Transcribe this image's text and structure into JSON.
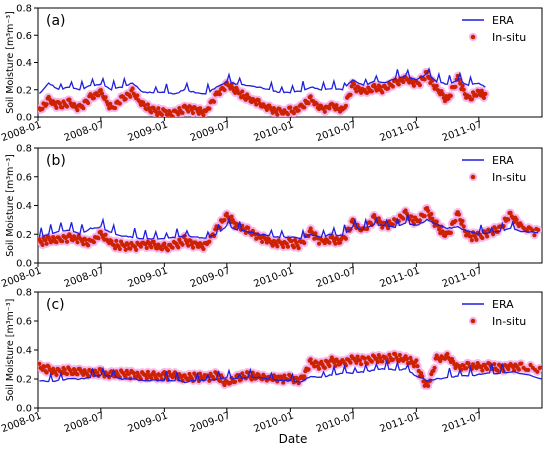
{
  "figure": {
    "xlabel": "Date",
    "ylabel": "Soil Moisture [m³m⁻³]",
    "legend_position": "top-right"
  },
  "colors": {
    "era": "#1f1fdd",
    "insitu_dot": "#cc2200",
    "insitu_halo": "#f5a8e8",
    "axis": "#000000"
  },
  "chart_data": [
    {
      "type": "line",
      "panel_label": "(a)",
      "x_type": "date",
      "xlim": [
        "2008-01-01",
        "2011-12-31"
      ],
      "ylim": [
        0.0,
        0.8
      ],
      "yticks": [
        0.0,
        0.2,
        0.4,
        0.6,
        0.8
      ],
      "ytick_labels": [
        "0.0",
        "0.2",
        "0.4",
        "0.6",
        "0.8"
      ],
      "xticks": [
        "2008-01-01",
        "2008-07-01",
        "2009-01-01",
        "2009-07-01",
        "2010-01-01",
        "2010-07-01",
        "2011-01-01",
        "2011-07-01"
      ],
      "xtick_labels": [
        "2008-01",
        "2008-07",
        "2009-01",
        "2009-07",
        "2010-01",
        "2010-07",
        "2011-01",
        "2011-07"
      ],
      "grid": false,
      "legend": "top-right",
      "series": [
        {
          "name": "ERA",
          "style": "line",
          "x": [
            "2008-01-05",
            "2008-02-01",
            "2008-03-01",
            "2008-04-01",
            "2008-05-01",
            "2008-06-01",
            "2008-07-01",
            "2008-08-01",
            "2008-09-01",
            "2008-10-01",
            "2008-11-01",
            "2008-12-01",
            "2009-01-01",
            "2009-02-01",
            "2009-03-01",
            "2009-04-01",
            "2009-05-01",
            "2009-06-01",
            "2009-07-01",
            "2009-08-01",
            "2009-09-01",
            "2009-10-01",
            "2009-11-01",
            "2009-12-01",
            "2010-01-01",
            "2010-02-01",
            "2010-03-01",
            "2010-04-01",
            "2010-05-01",
            "2010-06-01",
            "2010-07-01",
            "2010-08-01",
            "2010-09-01",
            "2010-10-01",
            "2010-11-01",
            "2010-12-01",
            "2011-01-01",
            "2011-02-01",
            "2011-03-01",
            "2011-04-01",
            "2011-05-01",
            "2011-06-01",
            "2011-07-01",
            "2011-07-20"
          ],
          "y": [
            0.17,
            0.25,
            0.2,
            0.22,
            0.2,
            0.23,
            0.24,
            0.2,
            0.22,
            0.25,
            0.18,
            0.18,
            0.18,
            0.17,
            0.2,
            0.18,
            0.17,
            0.22,
            0.26,
            0.24,
            0.23,
            0.22,
            0.2,
            0.18,
            0.18,
            0.19,
            0.22,
            0.2,
            0.21,
            0.2,
            0.27,
            0.23,
            0.26,
            0.25,
            0.28,
            0.3,
            0.27,
            0.32,
            0.26,
            0.24,
            0.27,
            0.23,
            0.25,
            0.22
          ]
        },
        {
          "name": "In-situ",
          "style": "dots",
          "x": [
            "2008-01-05",
            "2008-02-01",
            "2008-03-01",
            "2008-04-01",
            "2008-05-01",
            "2008-06-01",
            "2008-07-01",
            "2008-08-01",
            "2008-09-01",
            "2008-10-01",
            "2008-11-01",
            "2008-12-01",
            "2009-01-01",
            "2009-02-01",
            "2009-03-01",
            "2009-04-01",
            "2009-05-01",
            "2009-06-01",
            "2009-07-01",
            "2009-08-01",
            "2009-09-01",
            "2009-10-01",
            "2009-11-01",
            "2009-12-01",
            "2010-01-01",
            "2010-02-01",
            "2010-03-01",
            "2010-04-01",
            "2010-05-01",
            "2010-06-01",
            "2010-07-01",
            "2010-08-01",
            "2010-09-01",
            "2010-10-01",
            "2010-11-01",
            "2010-12-01",
            "2011-01-01",
            "2011-02-01",
            "2011-03-01",
            "2011-04-01",
            "2011-05-01",
            "2011-06-01",
            "2011-07-01",
            "2011-07-20"
          ],
          "y": [
            0.06,
            0.14,
            0.1,
            0.12,
            0.08,
            0.16,
            0.2,
            0.08,
            0.15,
            0.2,
            0.1,
            0.06,
            0.05,
            0.04,
            0.08,
            0.07,
            0.05,
            0.18,
            0.26,
            0.2,
            0.15,
            0.12,
            0.08,
            0.05,
            0.06,
            0.08,
            0.15,
            0.07,
            0.1,
            0.06,
            0.25,
            0.2,
            0.23,
            0.22,
            0.27,
            0.3,
            0.25,
            0.33,
            0.22,
            0.14,
            0.3,
            0.15,
            0.2,
            0.17
          ]
        }
      ]
    },
    {
      "type": "line",
      "panel_label": "(b)",
      "x_type": "date",
      "xlim": [
        "2008-01-01",
        "2011-12-31"
      ],
      "ylim": [
        0.0,
        0.8
      ],
      "yticks": [
        0.0,
        0.2,
        0.4,
        0.6,
        0.8
      ],
      "ytick_labels": [
        "0.0",
        "0.2",
        "0.4",
        "0.6",
        "0.8"
      ],
      "xticks": [
        "2008-01-01",
        "2008-07-01",
        "2009-01-01",
        "2009-07-01",
        "2010-01-01",
        "2010-07-01",
        "2011-01-01",
        "2011-07-01"
      ],
      "xtick_labels": [
        "2008-01",
        "2008-07",
        "2009-01",
        "2009-07",
        "2010-01",
        "2010-07",
        "2011-01",
        "2011-07"
      ],
      "grid": false,
      "legend": "top-right",
      "series": [
        {
          "name": "ERA",
          "style": "line",
          "x": [
            "2008-01-05",
            "2008-02-01",
            "2008-03-01",
            "2008-04-01",
            "2008-05-01",
            "2008-06-01",
            "2008-07-01",
            "2008-08-01",
            "2008-09-01",
            "2008-10-01",
            "2008-11-01",
            "2008-12-01",
            "2009-01-01",
            "2009-02-01",
            "2009-03-01",
            "2009-04-01",
            "2009-05-01",
            "2009-06-01",
            "2009-07-01",
            "2009-08-01",
            "2009-09-01",
            "2009-10-01",
            "2009-11-01",
            "2009-12-01",
            "2010-01-01",
            "2010-02-01",
            "2010-03-01",
            "2010-04-01",
            "2010-05-01",
            "2010-06-01",
            "2010-07-01",
            "2010-08-01",
            "2010-09-01",
            "2010-10-01",
            "2010-11-01",
            "2010-12-01",
            "2011-01-01",
            "2011-02-01",
            "2011-03-01",
            "2011-04-01",
            "2011-05-01",
            "2011-06-01",
            "2011-07-01",
            "2011-08-01",
            "2011-09-01",
            "2011-10-01",
            "2011-11-01",
            "2011-12-20"
          ],
          "y": [
            0.18,
            0.2,
            0.22,
            0.23,
            0.2,
            0.24,
            0.25,
            0.21,
            0.19,
            0.18,
            0.17,
            0.17,
            0.17,
            0.18,
            0.19,
            0.18,
            0.17,
            0.2,
            0.26,
            0.23,
            0.22,
            0.2,
            0.19,
            0.18,
            0.18,
            0.17,
            0.2,
            0.18,
            0.2,
            0.19,
            0.25,
            0.23,
            0.27,
            0.26,
            0.25,
            0.28,
            0.26,
            0.3,
            0.27,
            0.24,
            0.25,
            0.22,
            0.2,
            0.21,
            0.22,
            0.24,
            0.22,
            0.21
          ]
        },
        {
          "name": "In-situ",
          "style": "dots",
          "x": [
            "2008-01-05",
            "2008-02-01",
            "2008-03-01",
            "2008-04-01",
            "2008-05-01",
            "2008-06-01",
            "2008-07-01",
            "2008-08-01",
            "2008-09-01",
            "2008-10-01",
            "2008-11-01",
            "2008-12-01",
            "2009-01-01",
            "2009-02-01",
            "2009-03-01",
            "2009-04-01",
            "2009-05-01",
            "2009-06-01",
            "2009-07-01",
            "2009-08-01",
            "2009-09-01",
            "2009-10-01",
            "2009-11-01",
            "2009-12-01",
            "2010-01-01",
            "2010-02-01",
            "2010-03-01",
            "2010-04-01",
            "2010-05-01",
            "2010-06-01",
            "2010-07-01",
            "2010-08-01",
            "2010-09-01",
            "2010-10-01",
            "2010-11-01",
            "2010-12-01",
            "2011-01-01",
            "2011-02-01",
            "2011-03-01",
            "2011-04-01",
            "2011-05-01",
            "2011-06-01",
            "2011-07-01",
            "2011-08-01",
            "2011-09-01",
            "2011-10-01",
            "2011-11-01",
            "2011-12-20"
          ],
          "y": [
            0.16,
            0.18,
            0.17,
            0.2,
            0.18,
            0.16,
            0.22,
            0.15,
            0.14,
            0.13,
            0.15,
            0.14,
            0.13,
            0.14,
            0.18,
            0.14,
            0.14,
            0.25,
            0.35,
            0.27,
            0.24,
            0.2,
            0.17,
            0.15,
            0.16,
            0.14,
            0.24,
            0.16,
            0.18,
            0.17,
            0.3,
            0.24,
            0.33,
            0.28,
            0.3,
            0.36,
            0.3,
            0.38,
            0.28,
            0.2,
            0.36,
            0.2,
            0.21,
            0.23,
            0.26,
            0.35,
            0.27,
            0.23
          ]
        }
      ]
    },
    {
      "type": "line",
      "panel_label": "(c)",
      "x_type": "date",
      "xlim": [
        "2008-01-01",
        "2011-12-31"
      ],
      "ylim": [
        0.0,
        0.8
      ],
      "yticks": [
        0.0,
        0.2,
        0.4,
        0.6,
        0.8
      ],
      "ytick_labels": [
        "0.0",
        "0.2",
        "0.4",
        "0.6",
        "0.8"
      ],
      "xticks": [
        "2008-01-01",
        "2008-07-01",
        "2009-01-01",
        "2009-07-01",
        "2010-01-01",
        "2010-07-01",
        "2011-01-01",
        "2011-07-01"
      ],
      "xtick_labels": [
        "2008-01",
        "2008-07",
        "2009-01",
        "2009-07",
        "2010-01",
        "2010-07",
        "2011-01",
        "2011-07"
      ],
      "grid": false,
      "legend": "top-right",
      "series": [
        {
          "name": "ERA",
          "style": "line",
          "x": [
            "2008-01-05",
            "2008-02-01",
            "2008-03-01",
            "2008-04-01",
            "2008-05-01",
            "2008-06-01",
            "2008-07-01",
            "2008-08-01",
            "2008-09-01",
            "2008-10-01",
            "2008-11-01",
            "2008-12-01",
            "2009-01-01",
            "2009-02-01",
            "2009-03-01",
            "2009-04-01",
            "2009-05-01",
            "2009-06-01",
            "2009-07-01",
            "2009-08-01",
            "2009-09-01",
            "2009-10-01",
            "2009-11-01",
            "2009-12-01",
            "2010-01-01",
            "2010-02-01",
            "2010-03-01",
            "2010-04-01",
            "2010-05-01",
            "2010-06-01",
            "2010-07-01",
            "2010-08-01",
            "2010-09-01",
            "2010-10-01",
            "2010-11-01",
            "2010-12-01",
            "2011-01-01",
            "2011-02-01",
            "2011-03-01",
            "2011-04-01",
            "2011-05-01",
            "2011-06-01",
            "2011-07-01",
            "2011-08-01",
            "2011-09-01",
            "2011-10-01",
            "2011-11-01",
            "2011-12-31"
          ],
          "y": [
            0.19,
            0.18,
            0.19,
            0.2,
            0.2,
            0.21,
            0.23,
            0.22,
            0.2,
            0.2,
            0.19,
            0.19,
            0.19,
            0.19,
            0.18,
            0.19,
            0.19,
            0.2,
            0.21,
            0.2,
            0.21,
            0.21,
            0.2,
            0.19,
            0.19,
            0.18,
            0.22,
            0.21,
            0.23,
            0.24,
            0.24,
            0.25,
            0.26,
            0.27,
            0.26,
            0.27,
            0.22,
            0.19,
            0.2,
            0.21,
            0.22,
            0.22,
            0.23,
            0.24,
            0.24,
            0.25,
            0.24,
            0.2
          ]
        },
        {
          "name": "In-situ",
          "style": "dots",
          "x": [
            "2008-01-05",
            "2008-02-01",
            "2008-03-01",
            "2008-04-01",
            "2008-05-01",
            "2008-06-01",
            "2008-07-01",
            "2008-08-01",
            "2008-09-01",
            "2008-10-01",
            "2008-11-01",
            "2008-12-01",
            "2009-01-01",
            "2009-02-01",
            "2009-03-01",
            "2009-04-01",
            "2009-05-01",
            "2009-06-01",
            "2009-07-01",
            "2009-08-01",
            "2009-09-01",
            "2009-10-01",
            "2009-11-01",
            "2009-12-01",
            "2010-01-01",
            "2010-02-01",
            "2010-03-01",
            "2010-04-01",
            "2010-05-01",
            "2010-06-01",
            "2010-07-01",
            "2010-08-01",
            "2010-09-01",
            "2010-10-01",
            "2010-11-01",
            "2010-12-01",
            "2011-01-01",
            "2011-02-01",
            "2011-03-01",
            "2011-04-01",
            "2011-05-01",
            "2011-06-01",
            "2011-07-01",
            "2011-08-01",
            "2011-09-01",
            "2011-10-01",
            "2011-11-01",
            "2011-12-31"
          ],
          "y": [
            0.3,
            0.28,
            0.27,
            0.27,
            0.26,
            0.26,
            0.26,
            0.25,
            0.25,
            0.25,
            0.24,
            0.24,
            0.24,
            0.24,
            0.23,
            0.23,
            0.23,
            0.24,
            0.19,
            0.22,
            0.24,
            0.23,
            0.22,
            0.22,
            0.22,
            0.21,
            0.33,
            0.31,
            0.34,
            0.33,
            0.35,
            0.34,
            0.36,
            0.35,
            0.37,
            0.35,
            0.32,
            0.15,
            0.36,
            0.37,
            0.3,
            0.31,
            0.3,
            0.3,
            0.29,
            0.3,
            0.3,
            0.28
          ]
        }
      ]
    }
  ]
}
